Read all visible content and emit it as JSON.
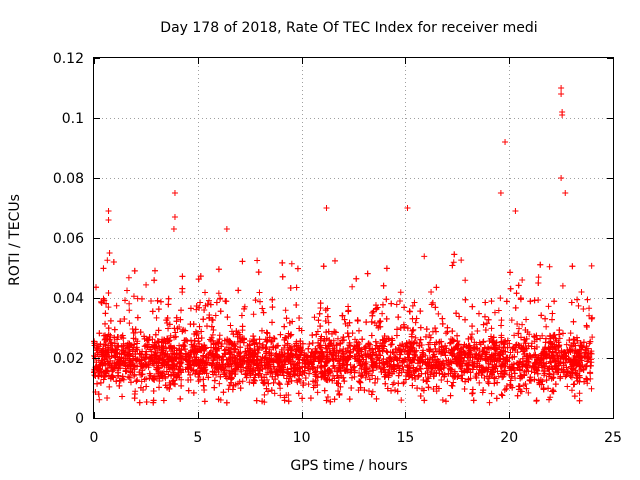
{
  "chart_data": {
    "type": "scatter",
    "title": "Day 178 of 2018, Rate Of TEC Index for receiver medi",
    "xlabel": "GPS time / hours",
    "ylabel": "ROTI / TECUs",
    "xlim": [
      0,
      25
    ],
    "ylim": [
      0,
      0.12
    ],
    "x_ticks": [
      0,
      5,
      10,
      15,
      20,
      25
    ],
    "x_tick_labels": [
      "0",
      "5",
      "10",
      "15",
      "20",
      "25"
    ],
    "y_ticks": [
      0,
      0.02,
      0.04,
      0.06,
      0.08,
      0.1,
      0.12
    ],
    "y_tick_labels": [
      "0",
      "0.02",
      "0.04",
      "0.06",
      "0.08",
      "0.1",
      "0.12"
    ],
    "grid": true,
    "marker": "+",
    "color": "#ff0000",
    "series": [
      {
        "name": "ROTI",
        "x_range": [
          0,
          24
        ],
        "baseline_band": [
          0.005,
          0.03
        ],
        "notable_points": [
          {
            "x": 0.7,
            "y": 0.069
          },
          {
            "x": 0.7,
            "y": 0.066
          },
          {
            "x": 0.75,
            "y": 0.055
          },
          {
            "x": 3.9,
            "y": 0.075
          },
          {
            "x": 3.9,
            "y": 0.067
          },
          {
            "x": 3.85,
            "y": 0.063
          },
          {
            "x": 6.4,
            "y": 0.063
          },
          {
            "x": 11.2,
            "y": 0.07
          },
          {
            "x": 15.1,
            "y": 0.07
          },
          {
            "x": 19.6,
            "y": 0.075
          },
          {
            "x": 19.8,
            "y": 0.092
          },
          {
            "x": 20.3,
            "y": 0.069
          },
          {
            "x": 22.5,
            "y": 0.11
          },
          {
            "x": 22.5,
            "y": 0.108
          },
          {
            "x": 22.55,
            "y": 0.102
          },
          {
            "x": 22.55,
            "y": 0.101
          },
          {
            "x": 22.5,
            "y": 0.08
          },
          {
            "x": 22.7,
            "y": 0.075
          }
        ]
      }
    ]
  }
}
